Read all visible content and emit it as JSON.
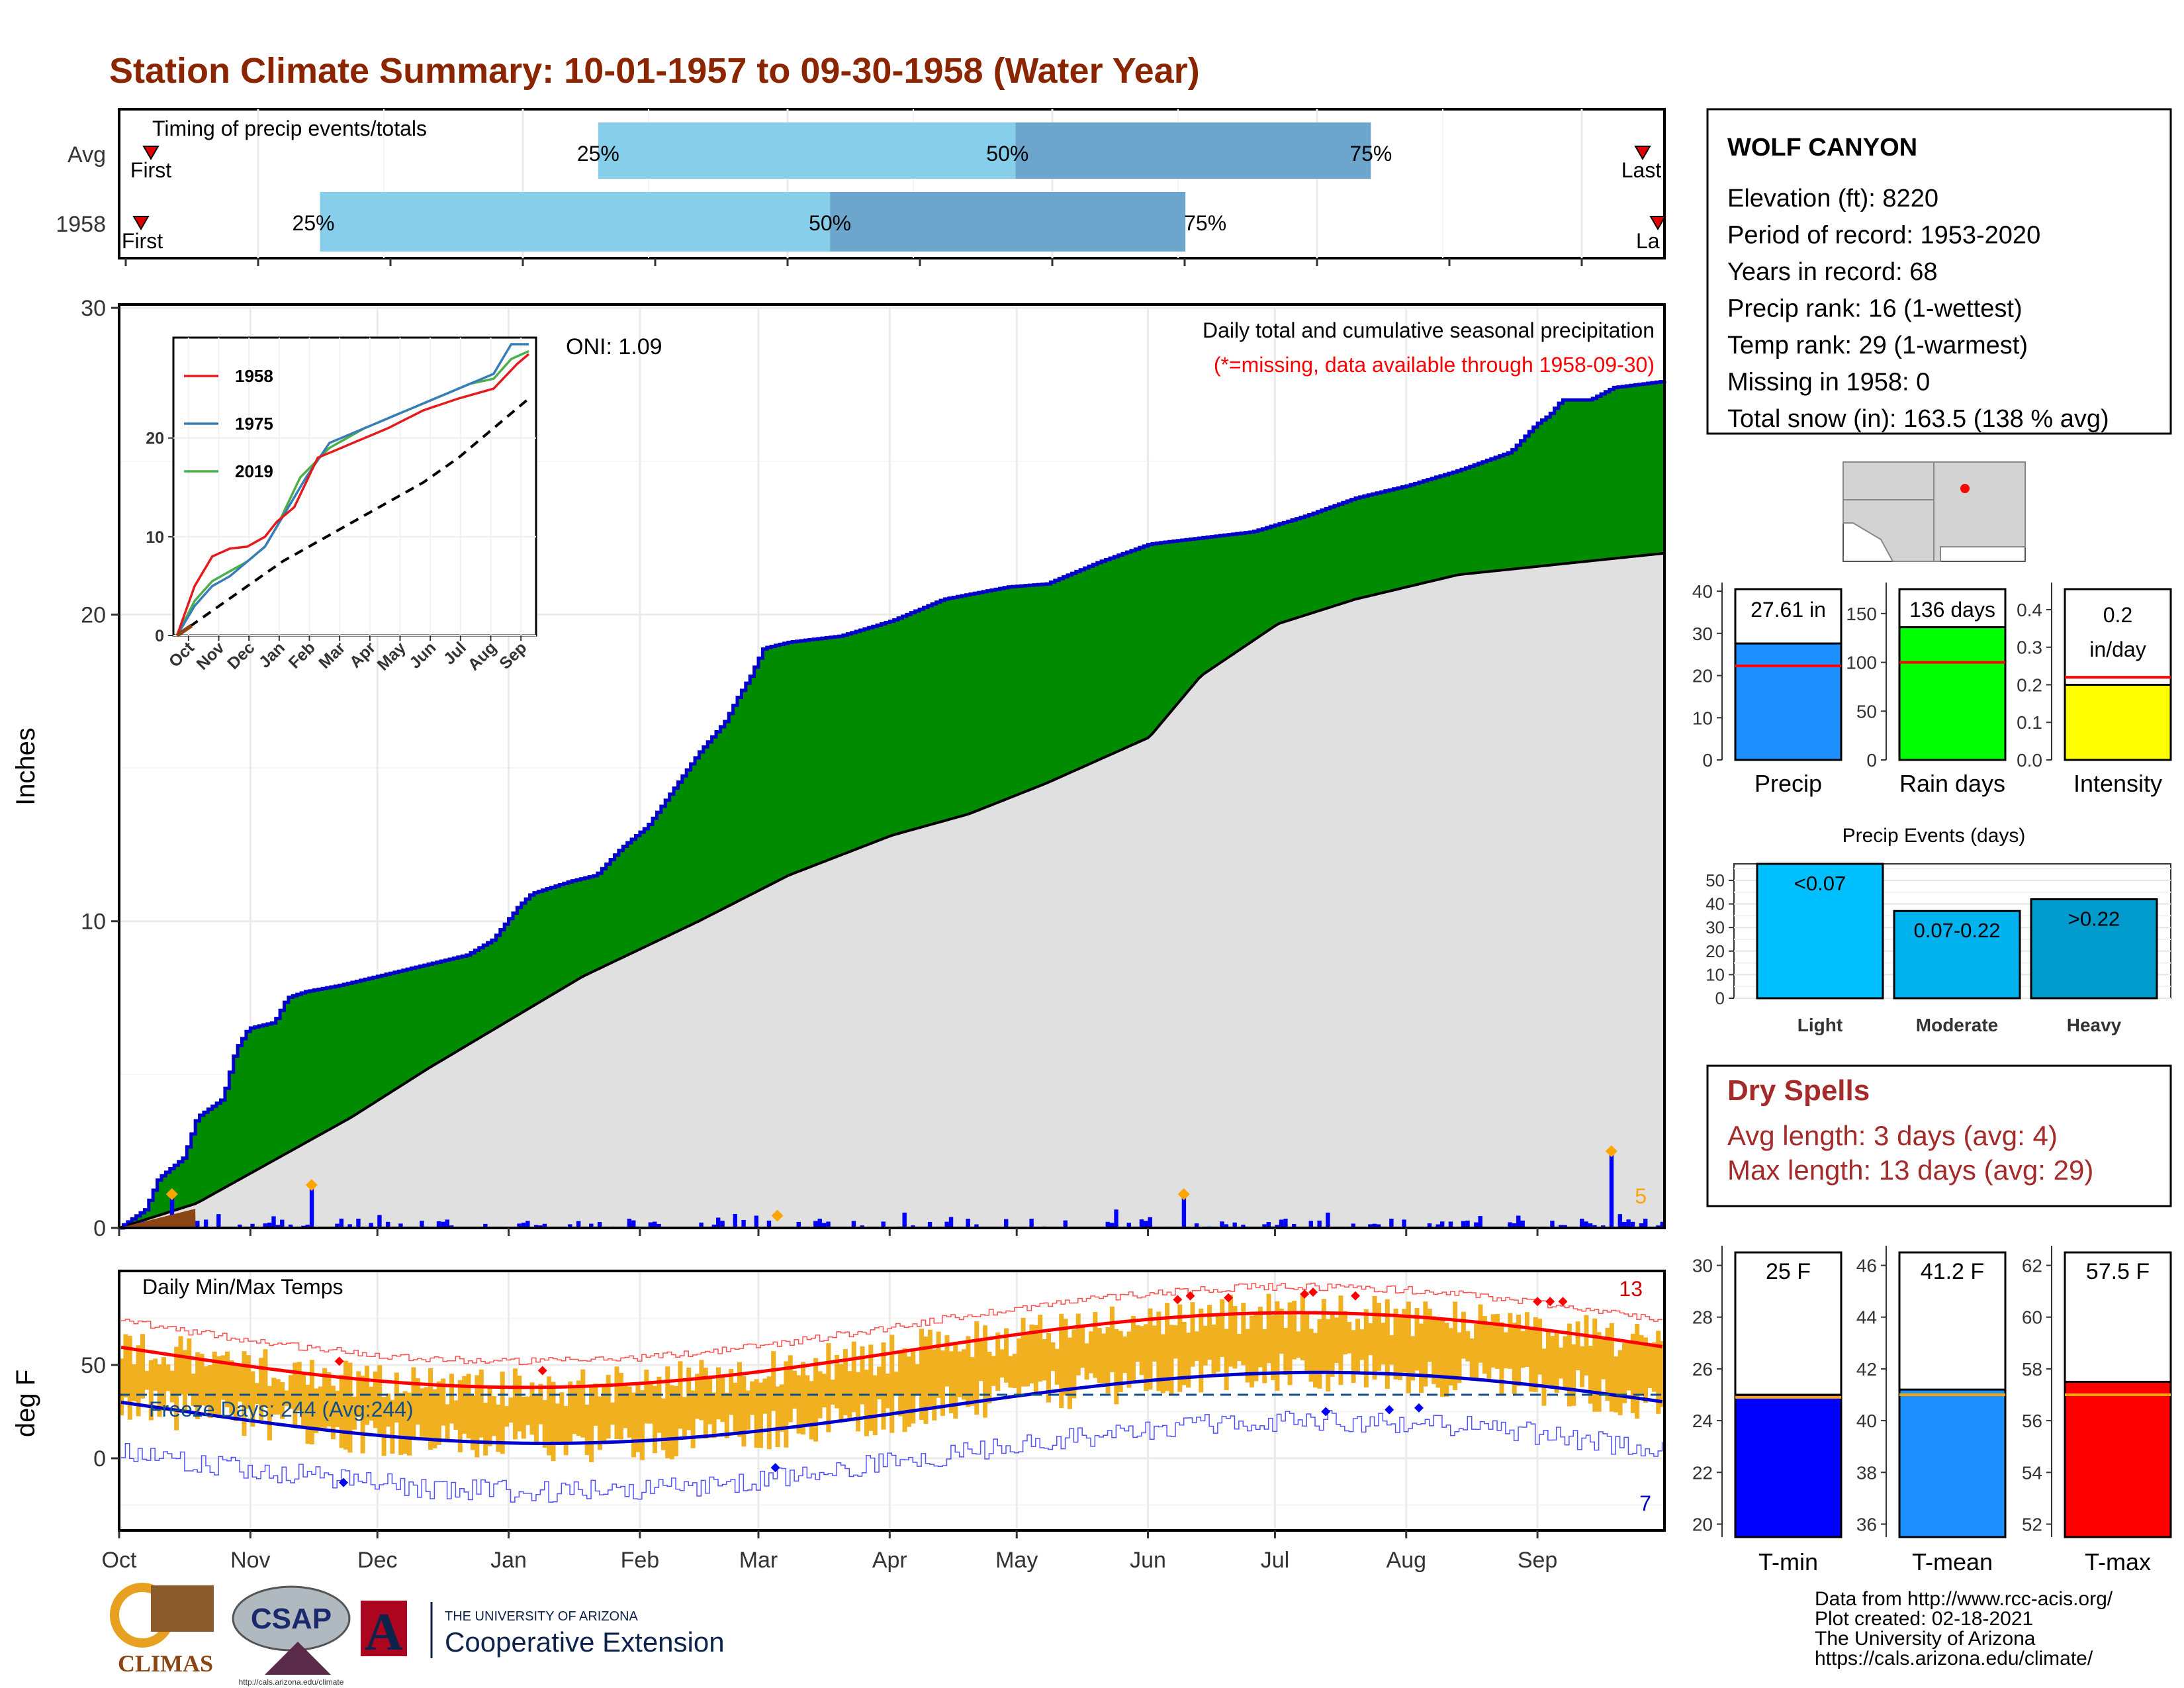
{
  "title": "Station Climate Summary: 10-01-1957 to 09-30-1958 (Water Year)",
  "colors": {
    "title": "#8B2500",
    "q_light": "#87CEEB",
    "q_dark": "#6CA6CD",
    "precip_green": "#008B00",
    "precip_outline": "#0000CD",
    "avg_fill": "#E0E0E0",
    "temp_bar": "#F0B020",
    "tmax_line": "#FF0000",
    "tmin_line": "#0000CD",
    "dry_spell": "#A52A2A"
  },
  "timing": {
    "label": "Timing of precip events/totals",
    "rows": [
      {
        "name": "Avg",
        "first_label": "First",
        "last_label": "Last",
        "q25": "25%",
        "q50": "50%",
        "q75": "75%"
      },
      {
        "name": "1958",
        "first_label": "First",
        "last_label": "La",
        "q25": "25%",
        "q50": "50%",
        "q75": "75%"
      }
    ]
  },
  "station": {
    "name": "WOLF CANYON",
    "lines": [
      "Elevation (ft): 8220",
      "Period of record: 1953-2020",
      "Years in record: 68",
      "Precip rank: 16 (1-wettest)",
      "Temp rank: 29 (1-warmest)",
      "Missing in 1958: 0",
      "Total snow (in): 163.5 (138 % avg)"
    ]
  },
  "precip_panel": {
    "ylabel": "Inches",
    "yticks": [
      "0",
      "10",
      "20",
      "30"
    ],
    "oni": "ONI: 1.09",
    "note1": "Daily total and cumulative seasonal precipitation",
    "note2": "(*=missing, data available through 1958-09-30)",
    "count_label": "5"
  },
  "inset": {
    "yticks": [
      "0",
      "10",
      "20"
    ],
    "xticks": [
      "Oct",
      "Nov",
      "Dec",
      "Jan",
      "Feb",
      "Mar",
      "Apr",
      "May",
      "Jun",
      "Jul",
      "Aug",
      "Sep"
    ],
    "legend": [
      {
        "name": "1958",
        "color": "#E41A1C"
      },
      {
        "name": "1975",
        "color": "#377EB8"
      },
      {
        "name": "2019",
        "color": "#4DAF4A"
      }
    ]
  },
  "temp_panel": {
    "ylabel": "deg F",
    "label": "Daily Min/Max Temps",
    "freeze": "Freeze Days: 244 (Avg:244)",
    "yticks": [
      "0",
      "50"
    ],
    "count_high": "13",
    "count_low": "7"
  },
  "months": [
    "Oct",
    "Nov",
    "Dec",
    "Jan",
    "Feb",
    "Mar",
    "Apr",
    "May",
    "Jun",
    "Jul",
    "Aug",
    "Sep"
  ],
  "summary_bars": [
    {
      "label": "Precip",
      "value_label": "27.61 in",
      "yticks": [
        "0",
        "10",
        "20",
        "30",
        "40"
      ],
      "color": "#1E90FF"
    },
    {
      "label": "Rain days",
      "value_label": "136 days",
      "yticks": [
        "0",
        "50",
        "100",
        "150"
      ],
      "color": "#00FF00"
    },
    {
      "label": "Intensity",
      "value_label": "0.2",
      "value_label2": "in/day",
      "yticks": [
        "0.0",
        "0.1",
        "0.2",
        "0.3",
        "0.4"
      ],
      "color": "#FFFF00"
    }
  ],
  "precip_events": {
    "title": "Precip Events (days)",
    "yticks": [
      "0",
      "10",
      "20",
      "30",
      "40",
      "50"
    ],
    "bars": [
      {
        "label": "Light",
        "range": "<0.07",
        "color": "#00BFFF"
      },
      {
        "label": "Moderate",
        "range": "0.07-0.22",
        "color": "#00B2EE"
      },
      {
        "label": "Heavy",
        "range": ">0.22",
        "color": "#009ACD"
      }
    ]
  },
  "dry_spells": {
    "title": "Dry Spells",
    "avg": "Avg length: 3 days (avg: 4)",
    "max": "Max length: 13 days (avg: 29)"
  },
  "temp_bars": [
    {
      "label": "T-min",
      "value_label": "25 F",
      "yticks": [
        "20",
        "22",
        "24",
        "26",
        "28",
        "30"
      ],
      "color": "#0000FF"
    },
    {
      "label": "T-mean",
      "value_label": "41.2 F",
      "yticks": [
        "36",
        "38",
        "40",
        "42",
        "44",
        "46"
      ],
      "color": "#1E90FF"
    },
    {
      "label": "T-max",
      "value_label": "57.5 F",
      "yticks": [
        "52",
        "54",
        "56",
        "58",
        "60",
        "62"
      ],
      "color": "#FF0000"
    }
  ],
  "footer": {
    "lines": [
      "Data from http://www.rcc-acis.org/",
      "Plot created: 02-18-2021",
      "The University of Arizona",
      "https://cals.arizona.edu/climate/"
    ],
    "logo1": "CLIMAS",
    "logo2": "CSAP",
    "logo2_url": "http://cals.arizona.edu/climate",
    "ua_small": "THE UNIVERSITY OF ARIZONA",
    "ua_big": "Cooperative Extension"
  },
  "chart_data": {
    "type": "area",
    "x_label_months": [
      "Oct",
      "Nov",
      "Dec",
      "Jan",
      "Feb",
      "Mar",
      "Apr",
      "May",
      "Jun",
      "Jul",
      "Aug",
      "Sep"
    ],
    "ylim": [
      0,
      30
    ],
    "cum_1958_knots": [
      [
        0,
        0
      ],
      [
        10,
        0.6
      ],
      [
        15,
        1.6
      ],
      [
        25,
        2.3
      ],
      [
        30,
        3.6
      ],
      [
        40,
        4.2
      ],
      [
        45,
        5.8
      ],
      [
        50,
        6.5
      ],
      [
        60,
        6.7
      ],
      [
        65,
        7.5
      ],
      [
        72,
        7.7
      ],
      [
        85,
        7.9
      ],
      [
        100,
        8.2
      ],
      [
        110,
        8.4
      ],
      [
        120,
        8.6
      ],
      [
        135,
        8.9
      ],
      [
        145,
        9.4
      ],
      [
        155,
        10.5
      ],
      [
        160,
        10.9
      ],
      [
        175,
        11.3
      ],
      [
        185,
        11.5
      ],
      [
        195,
        12.4
      ],
      [
        205,
        13.1
      ],
      [
        215,
        14.3
      ],
      [
        225,
        15.5
      ],
      [
        235,
        16.5
      ],
      [
        240,
        17.3
      ],
      [
        245,
        18.0
      ],
      [
        250,
        18.9
      ],
      [
        260,
        19.1
      ],
      [
        280,
        19.3
      ],
      [
        300,
        19.8
      ],
      [
        320,
        20.5
      ],
      [
        345,
        20.9
      ],
      [
        360,
        21.0
      ],
      [
        380,
        21.7
      ],
      [
        400,
        22.3
      ],
      [
        420,
        22.5
      ],
      [
        440,
        22.7
      ],
      [
        460,
        23.2
      ],
      [
        480,
        23.8
      ],
      [
        500,
        24.2
      ],
      [
        520,
        24.7
      ],
      [
        540,
        25.3
      ],
      [
        550,
        26.2
      ],
      [
        555,
        26.5
      ],
      [
        560,
        27.0
      ],
      [
        565,
        27.0
      ],
      [
        571,
        27.0
      ],
      [
        580,
        27.4
      ],
      [
        600,
        27.61
      ]
    ],
    "avg_knots": [
      [
        0,
        0
      ],
      [
        30,
        0.8
      ],
      [
        60,
        2.2
      ],
      [
        90,
        3.6
      ],
      [
        120,
        5.2
      ],
      [
        150,
        6.7
      ],
      [
        180,
        8.2
      ],
      [
        200,
        9.0
      ],
      [
        225,
        10.0
      ],
      [
        260,
        11.5
      ],
      [
        300,
        12.8
      ],
      [
        330,
        13.5
      ],
      [
        360,
        14.5
      ],
      [
        400,
        16.0
      ],
      [
        420,
        18.0
      ],
      [
        450,
        19.7
      ],
      [
        480,
        20.5
      ],
      [
        520,
        21.3
      ],
      [
        600,
        22.0
      ]
    ],
    "annual": {
      "precip_in": 27.61,
      "precip_avg_in": 22.3,
      "rain_days": 136,
      "rain_days_avg": 100,
      "intensity": 0.2,
      "intensity_avg": 0.22
    },
    "events": {
      "light": 57,
      "moderate": 37,
      "heavy": 42
    },
    "temps": {
      "tmin": 25.0,
      "tmin_avg": 24.9,
      "tmean": 41.2,
      "tmean_avg": 41.0,
      "tmax": 57.5,
      "tmax_avg": 57.0
    },
    "timing_pct": {
      "avg": {
        "first": 0.02,
        "q25": 0.31,
        "q50": 0.58,
        "q75": 0.81,
        "last": 0.98
      },
      "y1958": {
        "first": 0.01,
        "q25": 0.13,
        "q50": 0.46,
        "q75": 0.69,
        "last": 0.99
      }
    }
  }
}
